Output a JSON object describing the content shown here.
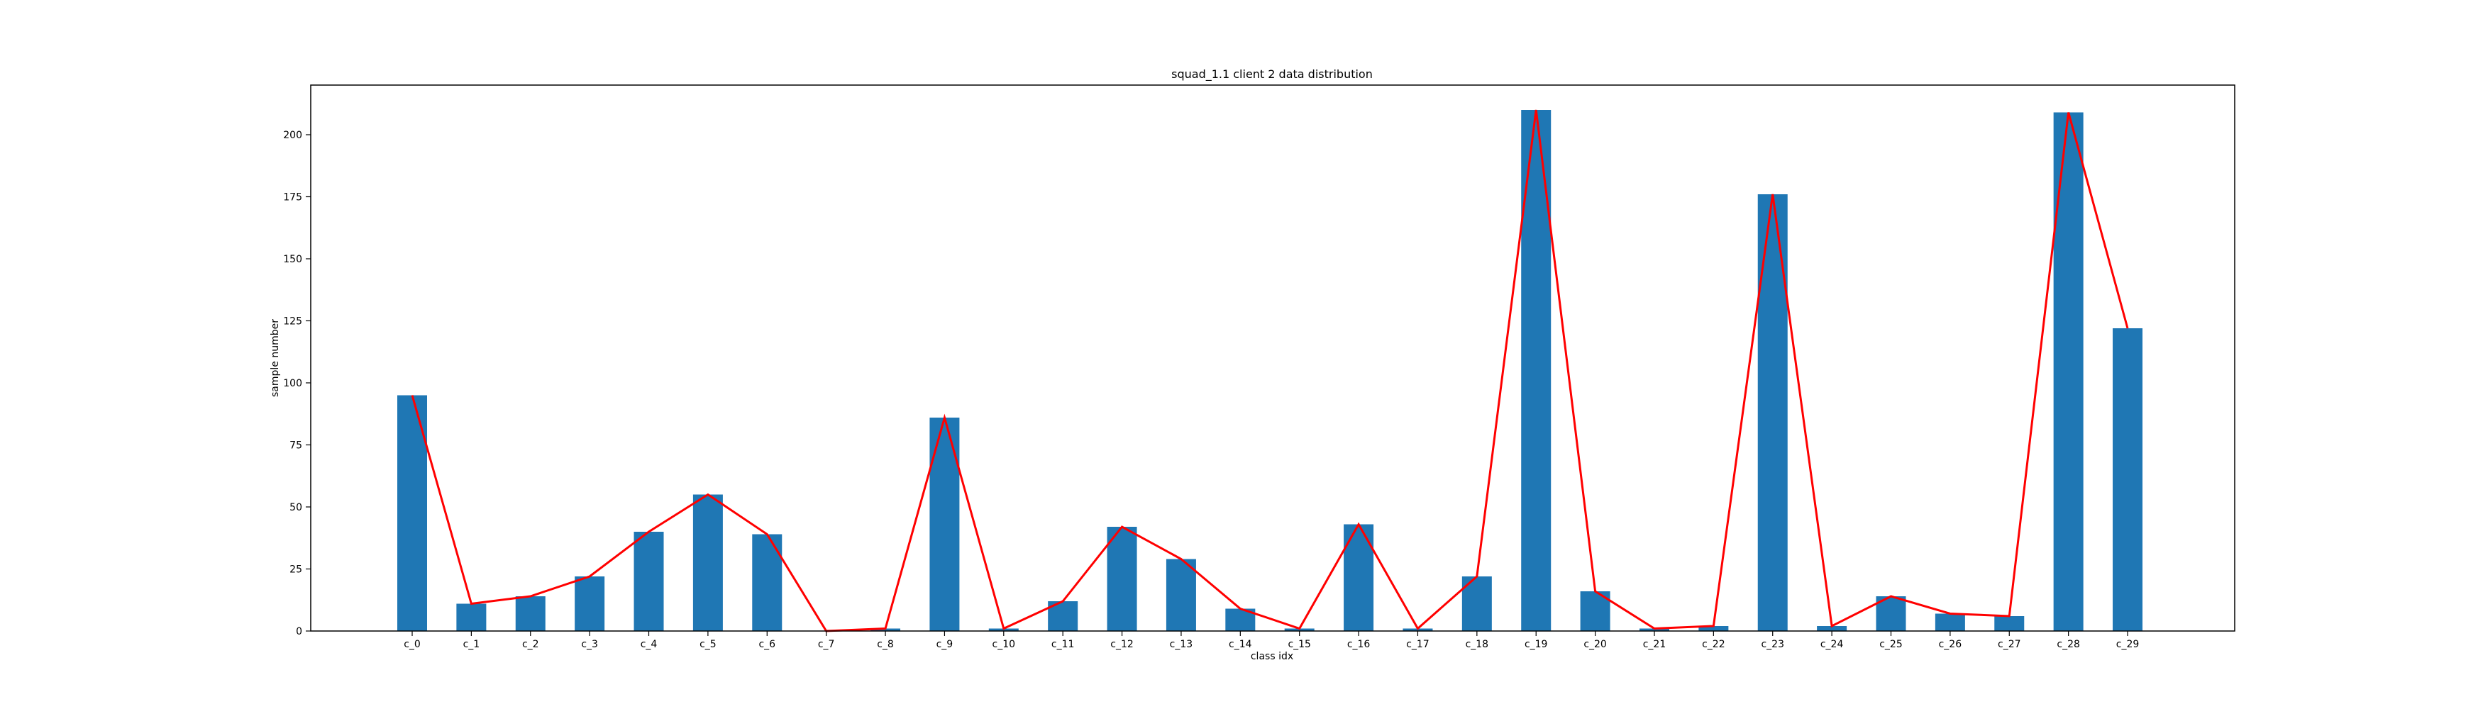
{
  "chart_data": {
    "type": "bar",
    "title": "squad_1.1 client 2 data distribution",
    "xlabel": "class idx",
    "ylabel": "sample number",
    "categories": [
      "c_0",
      "c_1",
      "c_2",
      "c_3",
      "c_4",
      "c_5",
      "c_6",
      "c_7",
      "c_8",
      "c_9",
      "c_10",
      "c_11",
      "c_12",
      "c_13",
      "c_14",
      "c_15",
      "c_16",
      "c_17",
      "c_18",
      "c_19",
      "c_20",
      "c_21",
      "c_22",
      "c_23",
      "c_24",
      "c_25",
      "c_26",
      "c_27",
      "c_28",
      "c_29"
    ],
    "values": [
      95,
      11,
      14,
      22,
      40,
      55,
      39,
      0,
      1,
      86,
      1,
      12,
      42,
      29,
      9,
      1,
      43,
      1,
      22,
      210,
      16,
      1,
      2,
      176,
      2,
      14,
      7,
      6,
      209,
      122
    ],
    "overlay_line": true,
    "ylim": [
      0,
      220
    ],
    "yticks": [
      0,
      25,
      50,
      75,
      100,
      125,
      150,
      175,
      200
    ],
    "grid": false,
    "legend": "none",
    "colors": {
      "bar": "#1f77b4",
      "line": "#ff0000",
      "axes": "#000000"
    }
  }
}
